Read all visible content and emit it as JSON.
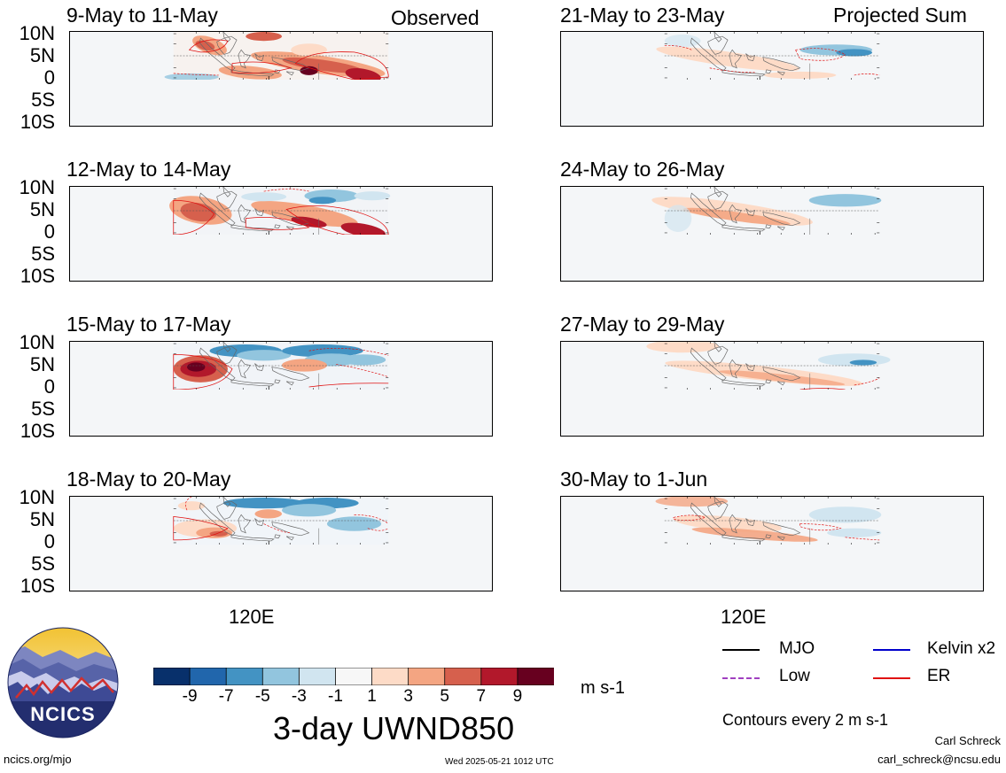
{
  "left_header": {
    "title": "9-May to 11-May",
    "tag": "Observed"
  },
  "right_header": {
    "title": "21-May to 23-May",
    "tag": "Projected Sum"
  },
  "panels_left": [
    {
      "title": "9-May to 11-May"
    },
    {
      "title": "12-May to 14-May"
    },
    {
      "title": "15-May to 17-May"
    },
    {
      "title": "18-May to 20-May"
    }
  ],
  "panels_right": [
    {
      "title": "21-May to 23-May"
    },
    {
      "title": "24-May to 26-May"
    },
    {
      "title": "27-May to 29-May"
    },
    {
      "title": "30-May to 1-Jun"
    }
  ],
  "lat_labels": [
    "10N",
    "5N",
    "0",
    "5S",
    "10S"
  ],
  "lon_label": "120E",
  "colorbar": {
    "ticks": [
      "-9",
      "-7",
      "-5",
      "-3",
      "-1",
      "1",
      "3",
      "5",
      "7",
      "9"
    ],
    "colors": [
      "#08306b",
      "#2166ac",
      "#4393c3",
      "#92c5de",
      "#d1e5f0",
      "#f7f7f7",
      "#fddbc7",
      "#f4a582",
      "#d6604d",
      "#b2182b",
      "#67001f"
    ],
    "units": "m s-1",
    "title": "3-day UWND850"
  },
  "legend": {
    "items": [
      {
        "label": "MJO",
        "color": "#000000",
        "style": "solid"
      },
      {
        "label": "Kelvin x2",
        "color": "#0000cc",
        "style": "solid"
      },
      {
        "label": "Low",
        "color": "#a040c0",
        "style": "dashed"
      },
      {
        "label": "ER",
        "color": "#e01010",
        "style": "solid"
      }
    ],
    "contours_note": "Contours every 2 m s-1"
  },
  "logo": {
    "text": "NCICS"
  },
  "footer": {
    "url": "ncics.org/mjo",
    "timestamp": "Wed 2025-05-21 1012 UTC",
    "author": "Carl Schreck",
    "email": "carl_schreck@ncsu.edu"
  }
}
